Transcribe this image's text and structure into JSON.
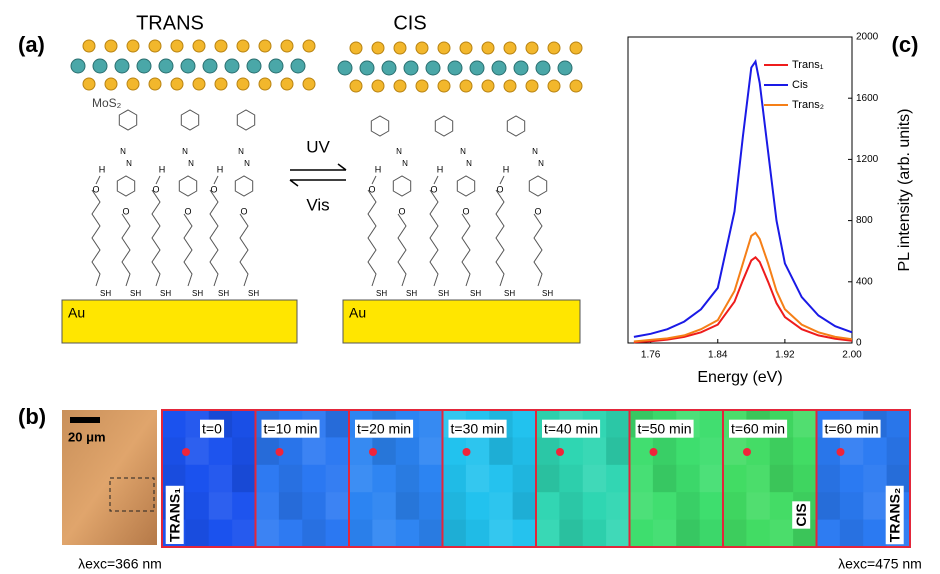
{
  "panel_a": {
    "label": "(a)",
    "trans": {
      "title": "TRANS",
      "layer": "MoS₂",
      "substrate": "Au",
      "molecules": [
        [
          "H",
          "O",
          "SH"
        ],
        [
          "N",
          "N",
          "O",
          "SH"
        ],
        [
          "H",
          "O",
          "SH"
        ],
        [
          "N",
          "N",
          "O",
          "SH"
        ],
        [
          "H",
          "O",
          "SH"
        ],
        [
          "N",
          "N",
          "O",
          "SH"
        ]
      ]
    },
    "cis": {
      "title": "CIS",
      "substrate": "Au",
      "molecules": [
        [
          "H",
          "O",
          "SH"
        ],
        [
          "N",
          "N",
          "O",
          "SH"
        ],
        [
          "H",
          "O",
          "SH"
        ],
        [
          "N",
          "N",
          "O",
          "SH"
        ],
        [
          "H",
          "O",
          "SH"
        ],
        [
          "N",
          "N",
          "O",
          "SH"
        ]
      ]
    },
    "forward": "UV",
    "backward": "Vis"
  },
  "panel_b": {
    "label": "(b)",
    "scale_bar": "20 μm",
    "tiles": [
      {
        "time": "t=0",
        "side": "TRANS₁",
        "color": "#1b52ee"
      },
      {
        "time": "t=10 min",
        "color": "#2b78f2"
      },
      {
        "time": "t=20 min",
        "color": "#2c84f2"
      },
      {
        "time": "t=30 min",
        "color": "#22c2ee"
      },
      {
        "time": "t=40 min",
        "color": "#2fd6b2"
      },
      {
        "time": "t=50 min",
        "color": "#3ede6e"
      },
      {
        "time": "t=60 min",
        "side": "CIS",
        "color": "#42dc64"
      },
      {
        "time": "t=60 min",
        "side": "TRANS₂",
        "color": "#2b7af2"
      }
    ],
    "excitation_left": "λexc=366 nm",
    "excitation_right": "λexc=475 nm"
  },
  "chart_data": {
    "type": "line",
    "label": "(c)",
    "x_label": "Energy (eV)",
    "y_label": "PL intensity (arb. units)",
    "x": [
      1.74,
      1.76,
      1.78,
      1.8,
      1.82,
      1.84,
      1.86,
      1.87,
      1.88,
      1.885,
      1.89,
      1.9,
      1.91,
      1.92,
      1.94,
      1.96,
      1.98,
      2.0
    ],
    "series": [
      {
        "name": "Trans₁",
        "color": "#ee1c1c",
        "values": [
          5,
          12,
          22,
          40,
          70,
          120,
          270,
          410,
          540,
          560,
          530,
          400,
          260,
          170,
          90,
          50,
          28,
          15
        ]
      },
      {
        "name": "Cis",
        "color": "#1a1ae6",
        "values": [
          40,
          60,
          90,
          140,
          220,
          360,
          860,
          1350,
          1800,
          1840,
          1700,
          1250,
          800,
          520,
          300,
          180,
          110,
          70
        ]
      },
      {
        "name": "Trans₂",
        "color": "#f57f17",
        "values": [
          10,
          20,
          30,
          50,
          90,
          150,
          340,
          520,
          700,
          720,
          680,
          520,
          340,
          220,
          120,
          70,
          40,
          25
        ]
      }
    ],
    "xlim": [
      1.733,
      2.0
    ],
    "ylim": [
      0,
      2000
    ],
    "xticks": [
      1.76,
      1.84,
      1.92,
      {
        "value": 2.0,
        "label": "2.00"
      }
    ],
    "yticks": [
      0,
      400,
      800,
      1200,
      1600,
      2000
    ],
    "legend": "upper-right"
  }
}
